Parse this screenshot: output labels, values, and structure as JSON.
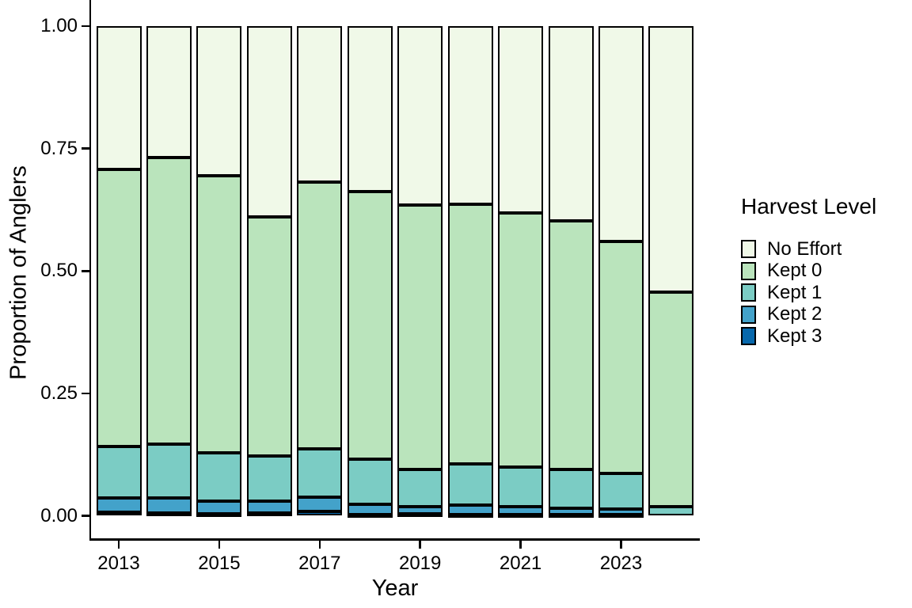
{
  "figure": {
    "background": "#FFFFFF",
    "axis_color": "#000000",
    "text_color": "#000000"
  },
  "chart_data": {
    "type": "bar",
    "stacked": true,
    "orientation": "vertical",
    "title": "",
    "xlabel": "Year",
    "ylabel": "Proportion of Anglers",
    "categories": [
      2013,
      2014,
      2015,
      2016,
      2017,
      2018,
      2019,
      2020,
      2021,
      2022,
      2023,
      2024
    ],
    "x_tick_labels": [
      "2013",
      "2015",
      "2017",
      "2019",
      "2021",
      "2023"
    ],
    "x_tick_years": [
      2013,
      2015,
      2017,
      2019,
      2021,
      2023
    ],
    "y_tick_labels": [
      "0.00",
      "0.25",
      "0.50",
      "0.75",
      "1.00"
    ],
    "y_tick_values": [
      0.0,
      0.25,
      0.5,
      0.75,
      1.0
    ],
    "ylim": [
      0,
      1
    ],
    "grid": false,
    "bar_outline_color": "#000000",
    "stack_order_bottom_to_top": [
      "Kept 3",
      "Kept 2",
      "Kept 1",
      "Kept 0",
      "No Effort"
    ],
    "series": [
      {
        "name": "No Effort",
        "color": "#F0F9E8",
        "values": [
          0.293,
          0.268,
          0.305,
          0.39,
          0.318,
          0.338,
          0.366,
          0.363,
          0.381,
          0.398,
          0.44,
          0.543
        ]
      },
      {
        "name": "Kept 0",
        "color": "#BAE4BC",
        "values": [
          0.566,
          0.586,
          0.567,
          0.488,
          0.546,
          0.547,
          0.539,
          0.531,
          0.52,
          0.508,
          0.474,
          0.439
        ]
      },
      {
        "name": "Kept 1",
        "color": "#7BCCC4",
        "values": [
          0.105,
          0.11,
          0.098,
          0.092,
          0.098,
          0.091,
          0.077,
          0.084,
          0.08,
          0.078,
          0.072,
          0.018
        ]
      },
      {
        "name": "Kept 2",
        "color": "#43A2CA",
        "values": [
          0.028,
          0.031,
          0.026,
          0.025,
          0.029,
          0.022,
          0.014,
          0.019,
          0.016,
          0.014,
          0.012,
          0.0
        ]
      },
      {
        "name": "Kept 3",
        "color": "#0868AC",
        "values": [
          0.008,
          0.005,
          0.004,
          0.005,
          0.009,
          0.002,
          0.004,
          0.003,
          0.003,
          0.002,
          0.002,
          0.0
        ]
      }
    ],
    "legend": {
      "title": "Harvest Level",
      "position": "right",
      "entries": [
        "No Effort",
        "Kept 0",
        "Kept 1",
        "Kept 2",
        "Kept 3"
      ]
    }
  }
}
